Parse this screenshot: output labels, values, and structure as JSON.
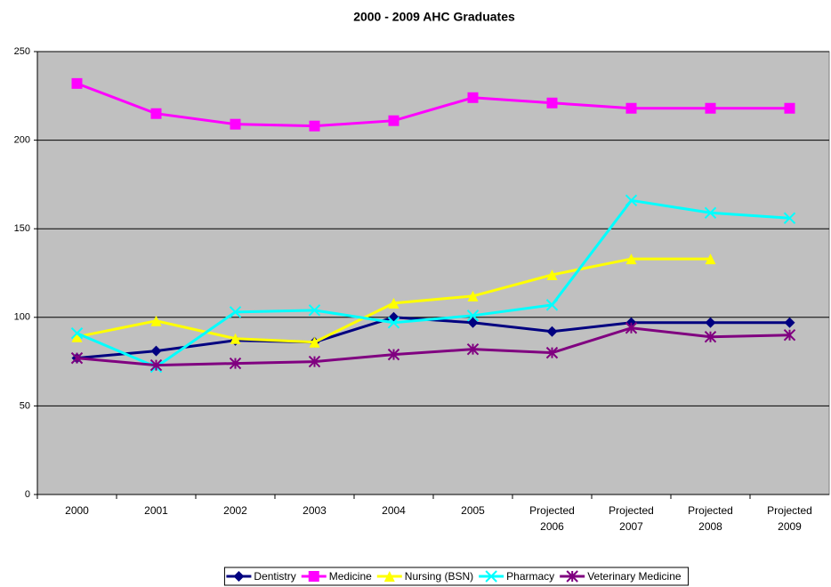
{
  "chart_data": {
    "type": "line",
    "title": "2000 - 2009 AHC Graduates",
    "categories": [
      "2000",
      "2001",
      "2002",
      "2003",
      "2004",
      "2005",
      "Projected 2006",
      "Projected 2007",
      "Projected 2008",
      "Projected 2009"
    ],
    "series": [
      {
        "name": "Dentistry",
        "color": "#000080",
        "marker": "diamond",
        "values": [
          77,
          81,
          87,
          86,
          100,
          97,
          92,
          97,
          97,
          97
        ]
      },
      {
        "name": "Medicine",
        "color": "#ff00ff",
        "marker": "square",
        "values": [
          232,
          215,
          209,
          208,
          211,
          224,
          221,
          218,
          218,
          218
        ]
      },
      {
        "name": "Nursing (BSN)",
        "color": "#ffff00",
        "marker": "triangle",
        "values": [
          89,
          98,
          88,
          86,
          108,
          112,
          124,
          133,
          133,
          null
        ]
      },
      {
        "name": "Pharmacy",
        "color": "#00ffff",
        "marker": "x",
        "values": [
          91,
          72,
          103,
          104,
          97,
          101,
          107,
          166,
          159,
          156
        ]
      },
      {
        "name": "Veterinary Medicine",
        "color": "#800080",
        "marker": "star",
        "values": [
          77,
          73,
          74,
          75,
          79,
          82,
          80,
          94,
          89,
          90
        ]
      }
    ],
    "ylim": [
      0,
      250
    ],
    "yticks": [
      0,
      50,
      100,
      150,
      200,
      250
    ],
    "grid": true,
    "plot_background": "#c0c0c0",
    "legend": "bottom"
  }
}
